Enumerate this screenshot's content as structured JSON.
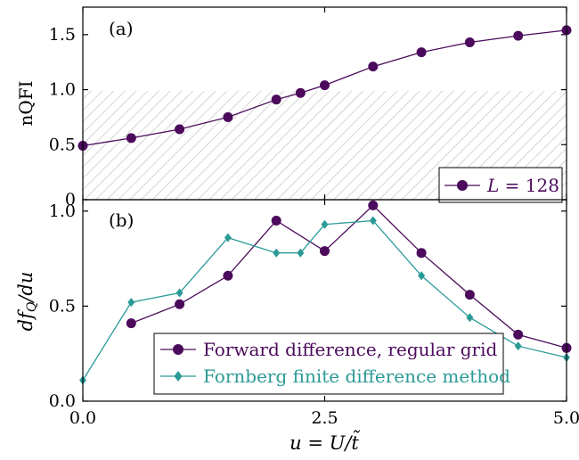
{
  "colors": {
    "purple": "#4b0a5b",
    "teal": "#2a9a96",
    "hatch": "#b9b9b9",
    "axis": "#000000"
  },
  "chart_data": [
    {
      "type": "line",
      "panel_label": "(a)",
      "xlabel": "",
      "ylabel": "nQFI",
      "xlim": [
        0,
        5
      ],
      "ylim": [
        0,
        1.75
      ],
      "xticks": [
        0,
        2.5,
        5
      ],
      "yticks": [
        0,
        0.5,
        1.0,
        1.5
      ],
      "ytick_labels": [
        "0",
        "0.5",
        "1.0",
        "1.5"
      ],
      "shaded_region": {
        "y_from": 0,
        "y_to": 1.0,
        "pattern": "diagonal hatch"
      },
      "legend_position": "bottom-right",
      "grid": false,
      "series": [
        {
          "name": "L = 128",
          "name_parts": {
            "var": "L",
            "rest": " = 128"
          },
          "color": "#4b0a5b",
          "marker": "circle",
          "x": [
            0,
            0.5,
            1.0,
            1.5,
            2.0,
            2.25,
            2.5,
            3.0,
            3.5,
            4.0,
            4.5,
            5.0
          ],
          "y": [
            0.49,
            0.56,
            0.64,
            0.75,
            0.91,
            0.97,
            1.04,
            1.21,
            1.34,
            1.43,
            1.49,
            1.54
          ]
        }
      ]
    },
    {
      "type": "line",
      "panel_label": "(b)",
      "xlabel": "u = U/t̃",
      "ylabel": "df_Q/du",
      "xlim": [
        0,
        5
      ],
      "ylim": [
        0,
        1.06
      ],
      "xticks": [
        0,
        2.5,
        5
      ],
      "xtick_labels": [
        "0.0",
        "2.5",
        "5.0"
      ],
      "yticks": [
        0,
        0.5,
        1.0
      ],
      "ytick_labels": [
        "0.0",
        "0.5",
        "1.0"
      ],
      "legend_position": "bottom-center",
      "grid": false,
      "series": [
        {
          "name": "Forward difference, regular grid",
          "color": "#4b0a5b",
          "marker": "circle",
          "x": [
            0.5,
            1.0,
            1.5,
            2.0,
            2.5,
            3.0,
            3.5,
            4.0,
            4.5,
            5.0
          ],
          "y": [
            0.41,
            0.51,
            0.66,
            0.95,
            0.79,
            1.03,
            0.78,
            0.56,
            0.35,
            0.28
          ]
        },
        {
          "name": "Fornberg finite difference method",
          "color": "#2a9a96",
          "marker": "diamond",
          "x": [
            0,
            0.5,
            1.0,
            1.5,
            2.0,
            2.25,
            2.5,
            3.0,
            3.5,
            4.0,
            4.5,
            5.0
          ],
          "y": [
            0.11,
            0.52,
            0.57,
            0.86,
            0.78,
            0.78,
            0.93,
            0.95,
            0.66,
            0.44,
            0.29,
            0.23
          ]
        }
      ]
    }
  ]
}
